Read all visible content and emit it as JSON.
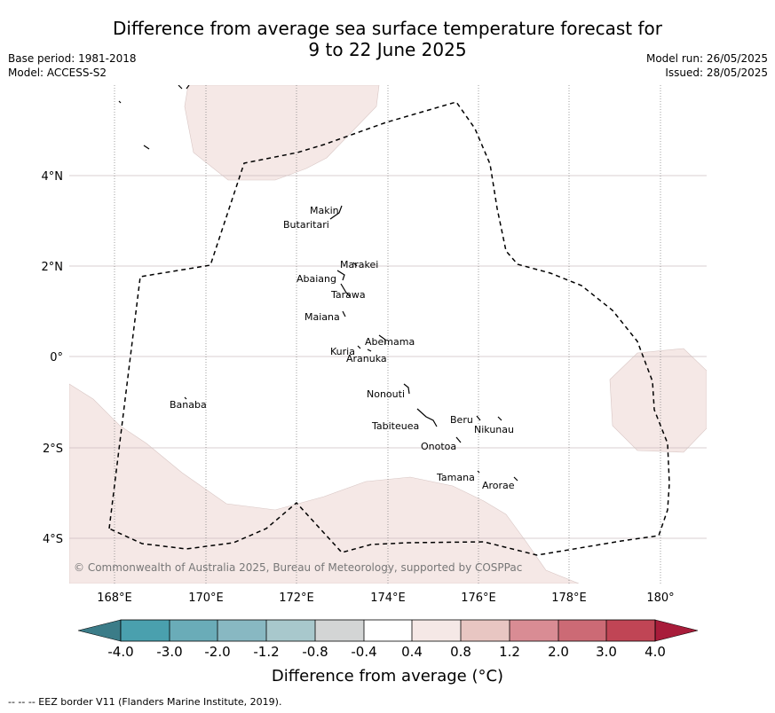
{
  "title": {
    "line1": "Difference from average sea surface temperature forecast for",
    "line2": "9 to 22 June 2025"
  },
  "meta_left": {
    "base_period": "Base period: 1981-2018",
    "model": "Model: ACCESS-S2"
  },
  "meta_right": {
    "model_run": "Model run: 26/05/2025",
    "issued": "Issued: 28/05/2025"
  },
  "map": {
    "lon_labels": [
      "168°E",
      "170°E",
      "172°E",
      "174°E",
      "176°E",
      "178°E",
      "180°"
    ],
    "lat_labels": [
      "4°N",
      "2°N",
      "0°",
      "2°S",
      "4°S"
    ],
    "copyright": "© Commonwealth of Australia 2025, Bureau of Meteorology, supported by COSPPac",
    "islands": {
      "makin": "Makin",
      "butaritari": "Butaritari",
      "marakei": "Marakei",
      "abaiang": "Abaiang",
      "tarawa": "Tarawa",
      "maiana": "Maiana",
      "abemama": "Abemama",
      "kuria": "Kuria",
      "aranuka": "Aranuka",
      "banaba": "Banaba",
      "nonouti": "Nonouti",
      "beru": "Beru",
      "nikunau": "Nikunau",
      "tabiteuea": "Tabiteuea",
      "onotoa": "Onotoa",
      "tamana": "Tamana",
      "arorae": "Arorae"
    }
  },
  "colorbar": {
    "title": "Difference from average (°C)",
    "tick_labels": [
      "-4.0",
      "-3.0",
      "-2.0",
      "-1.2",
      "-0.8",
      "-0.4",
      "0.4",
      "0.8",
      "1.2",
      "2.0",
      "3.0",
      "4.0"
    ],
    "colors": [
      "#3b7c88",
      "#4aa0ae",
      "#6aacb8",
      "#88b8c2",
      "#a8c8cc",
      "#d3d5d5",
      "#ffffff",
      "#f5e8e6",
      "#e8c6c2",
      "#d98c94",
      "#cc6a75",
      "#c04555",
      "#a81c3a"
    ]
  },
  "footnote": "--  --  -- EEZ border V11 (Flanders Marine Institute, 2019)."
}
